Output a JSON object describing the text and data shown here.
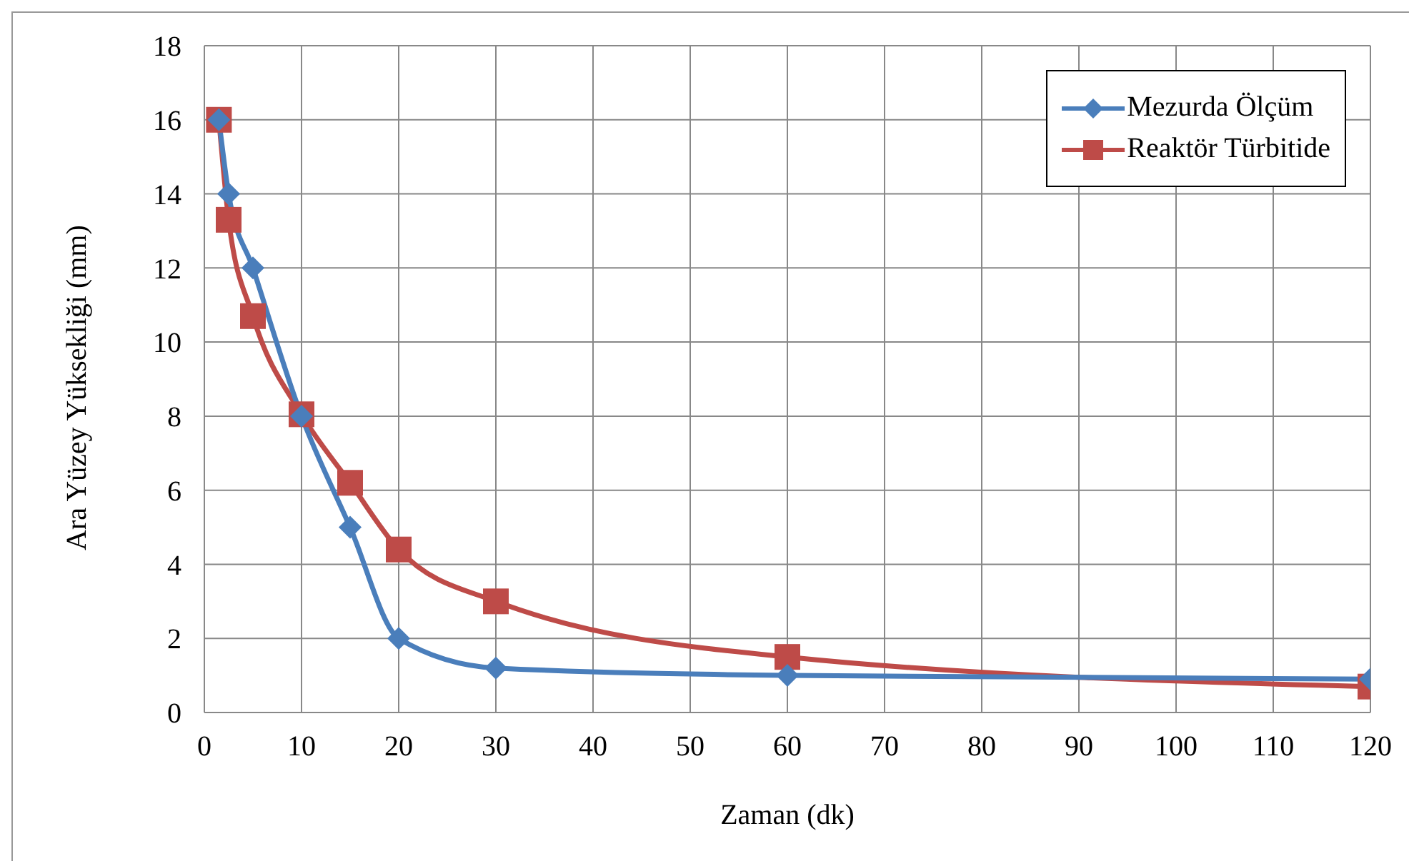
{
  "chart_data": {
    "type": "line",
    "xlabel": "Zaman (dk)",
    "ylabel": "Ara Yüzey Yüksekliği (mm)",
    "xlim": [
      0,
      120
    ],
    "xticks": [
      0,
      10,
      20,
      30,
      40,
      50,
      60,
      70,
      80,
      90,
      100,
      110,
      120
    ],
    "ylim": [
      0,
      18
    ],
    "yticks": [
      0,
      2,
      4,
      6,
      8,
      10,
      12,
      14,
      16,
      18
    ],
    "grid": true,
    "legend": "top right",
    "line_style": "solid",
    "series": [
      {
        "name": "Mezurda Ölçüm",
        "color": "#4a7ebb",
        "marker": "diamond",
        "x": [
          1.5,
          2.5,
          5,
          10,
          15,
          20,
          30,
          60,
          120
        ],
        "values": [
          16,
          14,
          12,
          8,
          5,
          2,
          1.2,
          1,
          0.9
        ]
      },
      {
        "name": "Reaktör Türbitide",
        "color": "#be4b48",
        "marker": "square",
        "x": [
          1.5,
          2.5,
          5,
          10,
          15,
          20,
          30,
          60,
          120
        ],
        "values": [
          16,
          13.3,
          10.7,
          8.05,
          6.2,
          4.4,
          3,
          1.5,
          0.7
        ]
      }
    ]
  }
}
